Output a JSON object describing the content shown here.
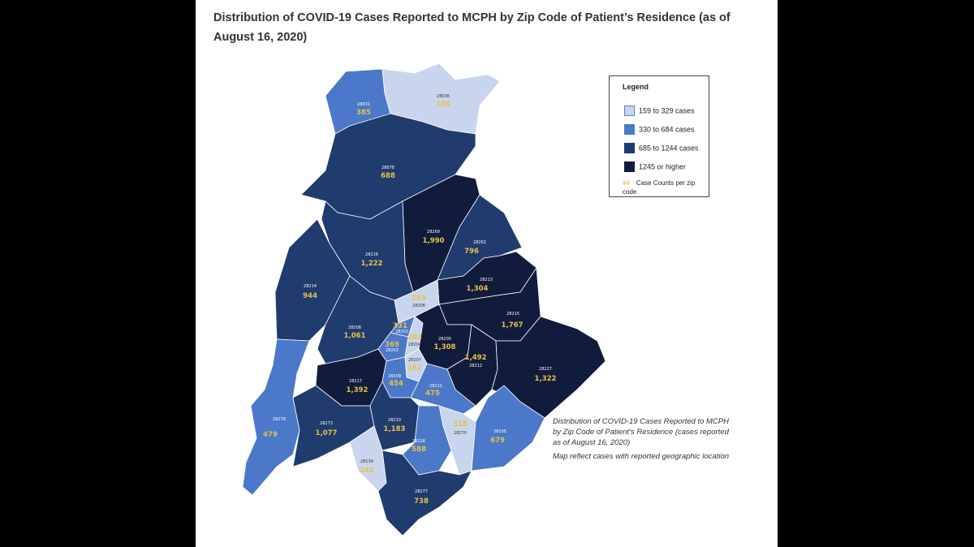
{
  "title": "Distribution of COVID-19 Cases Reported to MCPH by Zip Code of Patient’s Residence (as of August 16, 2020)",
  "legend": {
    "title": "Legend",
    "items": [
      {
        "label": "159 to 329 cases",
        "color": "#c9d5ec"
      },
      {
        "label": "330 to 684 cases",
        "color": "#4b78c8"
      },
      {
        "label": "685 to 1244 cases",
        "color": "#203b6e"
      },
      {
        "label": "1245 or higher",
        "color": "#111c3c"
      }
    ],
    "note_symbol": "##",
    "note": "Case Counts per zip code"
  },
  "caption": {
    "line1": "Distribution of COVID-19 Cases Reported to MCPH by Zip Code of Patient’s Residence (cases reported as of August 16, 2020)",
    "line2": "Map reflect cases with reported geographic location"
  },
  "regions": [
    {
      "zip": "28031",
      "count": "385"
    },
    {
      "zip": "28036",
      "count": "159"
    },
    {
      "zip": "28078",
      "count": "688"
    },
    {
      "zip": "28269",
      "count": "1,990"
    },
    {
      "zip": "28262",
      "count": "796"
    },
    {
      "zip": "28216",
      "count": "1,222"
    },
    {
      "zip": "28213",
      "count": "1,304"
    },
    {
      "zip": "28214",
      "count": "944"
    },
    {
      "zip": "28206",
      "count": "289"
    },
    {
      "zip": "28215",
      "count": "1,767"
    },
    {
      "zip": "28208",
      "count": "1,061"
    },
    {
      "zip": "28202",
      "count": "331"
    },
    {
      "zip": "28203",
      "count": "369"
    },
    {
      "zip": "28204",
      "count": "203"
    },
    {
      "zip": "28205",
      "count": "1,308"
    },
    {
      "zip": "28207",
      "count": "162"
    },
    {
      "zip": "28212",
      "count": "1,492"
    },
    {
      "zip": "28227",
      "count": "1,322"
    },
    {
      "zip": "28217",
      "count": "1,392"
    },
    {
      "zip": "28209",
      "count": "454"
    },
    {
      "zip": "28211",
      "count": "475"
    },
    {
      "zip": "28278",
      "count": "479"
    },
    {
      "zip": "28273",
      "count": "1,077"
    },
    {
      "zip": "28210",
      "count": "1,183"
    },
    {
      "zip": "28270",
      "count": "318"
    },
    {
      "zip": "28226",
      "count": "588"
    },
    {
      "zip": "28105",
      "count": "679"
    },
    {
      "zip": "28134",
      "count": "242"
    },
    {
      "zip": "28277",
      "count": "738"
    }
  ]
}
